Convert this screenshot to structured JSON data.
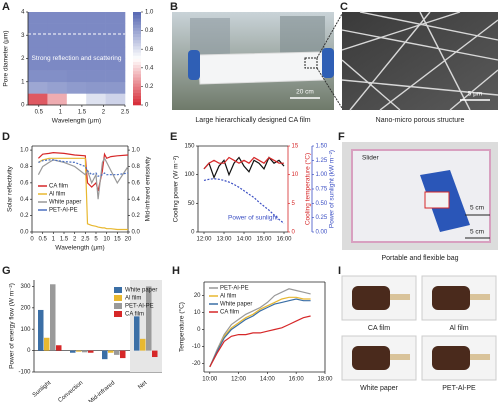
{
  "photos": [
    {
      "letter": "B",
      "caption": "Large hierarchically designed CA film",
      "scale": "20 cm"
    },
    {
      "letter": "C",
      "caption": "Nano-micro porous structure",
      "scale": "5 μm"
    },
    {
      "letter": "F",
      "caption": "Portable and flexible bag",
      "label": "Slider",
      "scales": [
        "5 cm",
        "5 cm"
      ]
    },
    {
      "letter": "I",
      "items": [
        "CA film",
        "Al film",
        "White paper",
        "PET-Al-PE"
      ]
    }
  ],
  "chart_data": [
    {
      "type": "heatmap",
      "letter": "A",
      "xlabel": "Wavelength (μm)",
      "ylabel": "Pore diameter (μm)",
      "annotation": "Strong reflection and scattering",
      "xlim": [
        0.25,
        2.5
      ],
      "xticks": [
        0.5,
        1,
        1.5,
        2,
        2.5
      ],
      "ylim": [
        0,
        4
      ],
      "yticks": [
        0,
        1,
        2,
        3,
        4
      ],
      "colormap": [
        "#d7303b",
        "#ffffff",
        "#5b6cb5"
      ],
      "clim": [
        0,
        1
      ],
      "cticks": [
        0,
        0.2,
        0.4,
        0.6,
        0.8,
        {
          "value": 1,
          "label": "1.0"
        }
      ],
      "z": [
        [
          0.1,
          0.3,
          0.5,
          0.6,
          0.65
        ],
        [
          0.8,
          0.82,
          0.84,
          0.85,
          0.85
        ],
        [
          0.88,
          0.88,
          0.89,
          0.89,
          0.89
        ],
        [
          0.9,
          0.9,
          0.9,
          0.9,
          0.9
        ],
        [
          0.9,
          0.9,
          0.9,
          0.9,
          0.9
        ],
        [
          0.9,
          0.9,
          0.9,
          0.9,
          0.9
        ],
        [
          0.9,
          0.9,
          0.9,
          0.9,
          0.9
        ],
        [
          0.9,
          0.9,
          0.9,
          0.9,
          0.9
        ]
      ]
    },
    {
      "type": "line",
      "letter": "D",
      "xlabel": "Wavelength (μm)",
      "ylabel": "Solar reflectivity",
      "y2label": "Mid-infrared emissivity",
      "xlim": [
        0,
        20
      ],
      "xticks": [
        0,
        0.5,
        1,
        1.5,
        2,
        2.5,
        5,
        10,
        15,
        20
      ],
      "ylim": [
        0,
        1.05
      ],
      "yticks": [
        {
          "value": 0,
          "label": "0.0"
        },
        0.2,
        0.4,
        0.6,
        0.8,
        {
          "value": 1,
          "label": "1.0"
        }
      ],
      "y2lim": [
        0,
        1.05
      ],
      "y2ticks": [
        {
          "value": 0,
          "label": "0.0"
        },
        0.2,
        0.4,
        0.6,
        0.8,
        {
          "value": 1,
          "label": "1.0"
        }
      ],
      "x": [
        0.3,
        0.5,
        0.8,
        1,
        1.5,
        2,
        2.5,
        3,
        4,
        5,
        6,
        8,
        9,
        10,
        12,
        15,
        20
      ],
      "series": [
        {
          "name": "CA film",
          "color": "#d62728",
          "values": [
            0.9,
            0.95,
            0.96,
            0.97,
            0.96,
            0.94,
            0.93,
            0.6,
            0.55,
            0.6,
            0.5,
            0.75,
            0.95,
            0.9,
            0.92,
            0.93,
            0.94
          ]
        },
        {
          "name": "Al film",
          "color": "#e8b830",
          "values": [
            0.85,
            0.88,
            0.9,
            0.9,
            0.9,
            0.9,
            0.9,
            0.1,
            0.08,
            0.07,
            0.06,
            0.05,
            0.05,
            0.04,
            0.04,
            0.03,
            0.03
          ]
        },
        {
          "name": "White paper",
          "color": "#999999",
          "values": [
            0.7,
            0.8,
            0.85,
            0.88,
            0.85,
            0.8,
            0.7,
            0.75,
            0.6,
            0.7,
            0.4,
            0.85,
            0.9,
            0.85,
            0.75,
            0.6,
            0.8
          ]
        },
        {
          "name": "PET-Al-PE",
          "color": "#4a6fc1",
          "values": [
            0.85,
            0.87,
            0.88,
            0.88,
            0.86,
            0.85,
            0.8,
            0.75,
            0.7,
            0.72,
            0.68,
            0.7,
            0.72,
            0.7,
            0.7,
            0.7,
            0.72
          ]
        }
      ]
    },
    {
      "type": "line",
      "letter": "E",
      "ylabel": "Cooling power (W m⁻²)",
      "y2label": "Cooling temperature (°C)",
      "y3label": "Power of sunlight (kW m⁻²)",
      "annotation": "Power of sunlight",
      "xlim": [
        11.7,
        16.2
      ],
      "xticks": [
        {
          "value": 12,
          "label": "12:00"
        },
        {
          "value": 13,
          "label": "13:00"
        },
        {
          "value": 14,
          "label": "14:00"
        },
        {
          "value": 15,
          "label": "15:00"
        },
        {
          "value": 16,
          "label": "16:00"
        }
      ],
      "ylim": [
        0,
        150
      ],
      "yticks": [
        0,
        50,
        100,
        150
      ],
      "y2lim": [
        0,
        15
      ],
      "y2ticks": [
        0,
        5,
        10,
        15
      ],
      "y3lim": [
        0,
        1.5
      ],
      "y3ticks": [
        {
          "value": 0,
          "label": "0.00"
        },
        {
          "value": 0.25,
          "label": "0.25"
        },
        {
          "value": 0.5,
          "label": "0.50"
        },
        {
          "value": 0.75,
          "label": "0.75"
        },
        {
          "value": 1,
          "label": "1.00"
        },
        {
          "value": 1.25,
          "label": "1.25"
        },
        {
          "value": 1.5,
          "label": "1.50"
        }
      ],
      "x": [
        12,
        12.25,
        12.5,
        12.75,
        13,
        13.25,
        13.5,
        13.75,
        14,
        14.25,
        14.5,
        14.75,
        15,
        15.25,
        15.5,
        15.75,
        16
      ],
      "series": [
        {
          "name": "Cooling power",
          "color": "#111111",
          "values": [
            110,
            120,
            95,
            115,
            125,
            100,
            120,
            130,
            115,
            105,
            125,
            120,
            110,
            130,
            120,
            125,
            115
          ]
        },
        {
          "name": "Cooling temperature",
          "color": "#d62728",
          "axis": "y2",
          "values": [
            11,
            12,
            12.5,
            12,
            12,
            13,
            12.5,
            12,
            12.5,
            12,
            13,
            12.5,
            12,
            13,
            12.5,
            12,
            12
          ]
        },
        {
          "name": "Power of sunlight",
          "color": "#3b4fc4",
          "axis": "y3",
          "values": [
            0.9,
            0.92,
            0.93,
            0.92,
            0.9,
            0.87,
            0.83,
            0.78,
            0.72,
            0.66,
            0.6,
            0.52,
            0.45,
            0.38,
            0.3,
            0.22,
            0.15
          ]
        }
      ]
    },
    {
      "type": "bar",
      "letter": "G",
      "ylabel": "Power of energy flow (W m⁻²)",
      "categories": [
        "Sunlight",
        "Convection",
        "Mid-infrared",
        "Net"
      ],
      "ylim": [
        -100,
        330
      ],
      "yticks": [
        -100,
        0,
        100,
        200,
        300
      ],
      "series": [
        {
          "name": "White paper",
          "color": "#3b6fa6",
          "values": [
            190,
            -10,
            -40,
            160
          ]
        },
        {
          "name": "Al film",
          "color": "#e8b830",
          "values": [
            60,
            -5,
            -10,
            55
          ]
        },
        {
          "name": "PET-Al-PE",
          "color": "#9a9a9a",
          "values": [
            310,
            -8,
            -20,
            300
          ]
        },
        {
          "name": "CA film",
          "color": "#d62728",
          "values": [
            25,
            -10,
            -35,
            -30
          ]
        }
      ]
    },
    {
      "type": "line",
      "letter": "H",
      "ylabel": "Temperature (°C)",
      "xlim": [
        9.6,
        18
      ],
      "xticks": [
        {
          "value": 10,
          "label": "10:00"
        },
        {
          "value": 12,
          "label": "12:00"
        },
        {
          "value": 14,
          "label": "14:00"
        },
        {
          "value": 16,
          "label": "16:00"
        },
        {
          "value": 18,
          "label": "18:00"
        }
      ],
      "ylim": [
        -25,
        28
      ],
      "yticks": [
        -20,
        -10,
        0,
        10,
        20
      ],
      "x": [
        10,
        10.5,
        11,
        11.5,
        12,
        12.5,
        13,
        13.5,
        14,
        14.5,
        15,
        15.5,
        16,
        16.5,
        17
      ],
      "series": [
        {
          "name": "PET-Al-PE",
          "color": "#999999",
          "values": [
            -22,
            -12,
            -3,
            3,
            6,
            9,
            11,
            13,
            16,
            20,
            22,
            24,
            23,
            22,
            21
          ]
        },
        {
          "name": "Al film",
          "color": "#e8b830",
          "values": [
            -22,
            -13,
            -4,
            1,
            4,
            7,
            9,
            12,
            14,
            16,
            18,
            19,
            19,
            18,
            18
          ]
        },
        {
          "name": "White paper",
          "color": "#3b6fa6",
          "values": [
            -22,
            -13,
            -5,
            0,
            3,
            6,
            8,
            11,
            13,
            15,
            16,
            17,
            18,
            17,
            17
          ]
        },
        {
          "name": "CA film",
          "color": "#d62728",
          "values": [
            -22,
            -14,
            -7,
            -4,
            -3,
            -3,
            -2,
            -2,
            -1,
            0,
            1,
            3,
            5,
            7,
            8
          ]
        }
      ]
    }
  ]
}
